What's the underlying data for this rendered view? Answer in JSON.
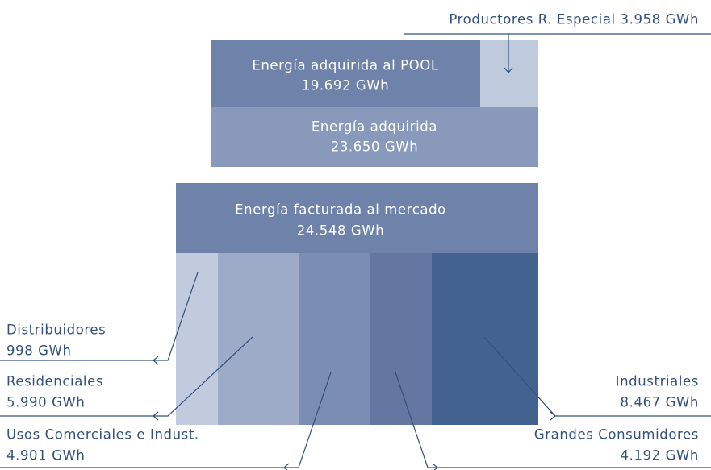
{
  "top": {
    "callout": "Productores R. Especial 3.958 GWh",
    "pool": {
      "title": "Energía adquirida al POOL",
      "value": "19.692 GWh"
    },
    "acquired": {
      "title": "Energía adquirida",
      "value": "23.650 GWh"
    }
  },
  "bottom": {
    "header": {
      "title": "Energía facturada al mercado",
      "value": "24.548 GWh"
    },
    "segments": [
      {
        "name": "Distribuidores",
        "value": "998 GWh"
      },
      {
        "name": "Residenciales",
        "value": "5.990 GWh"
      },
      {
        "name": "Usos Comerciales e Indust.",
        "value": "4.901 GWh"
      },
      {
        "name": "Grandes Consumidores",
        "value": "4.192 GWh"
      },
      {
        "name": "Industriales",
        "value": "8.467 GWh"
      }
    ]
  }
}
